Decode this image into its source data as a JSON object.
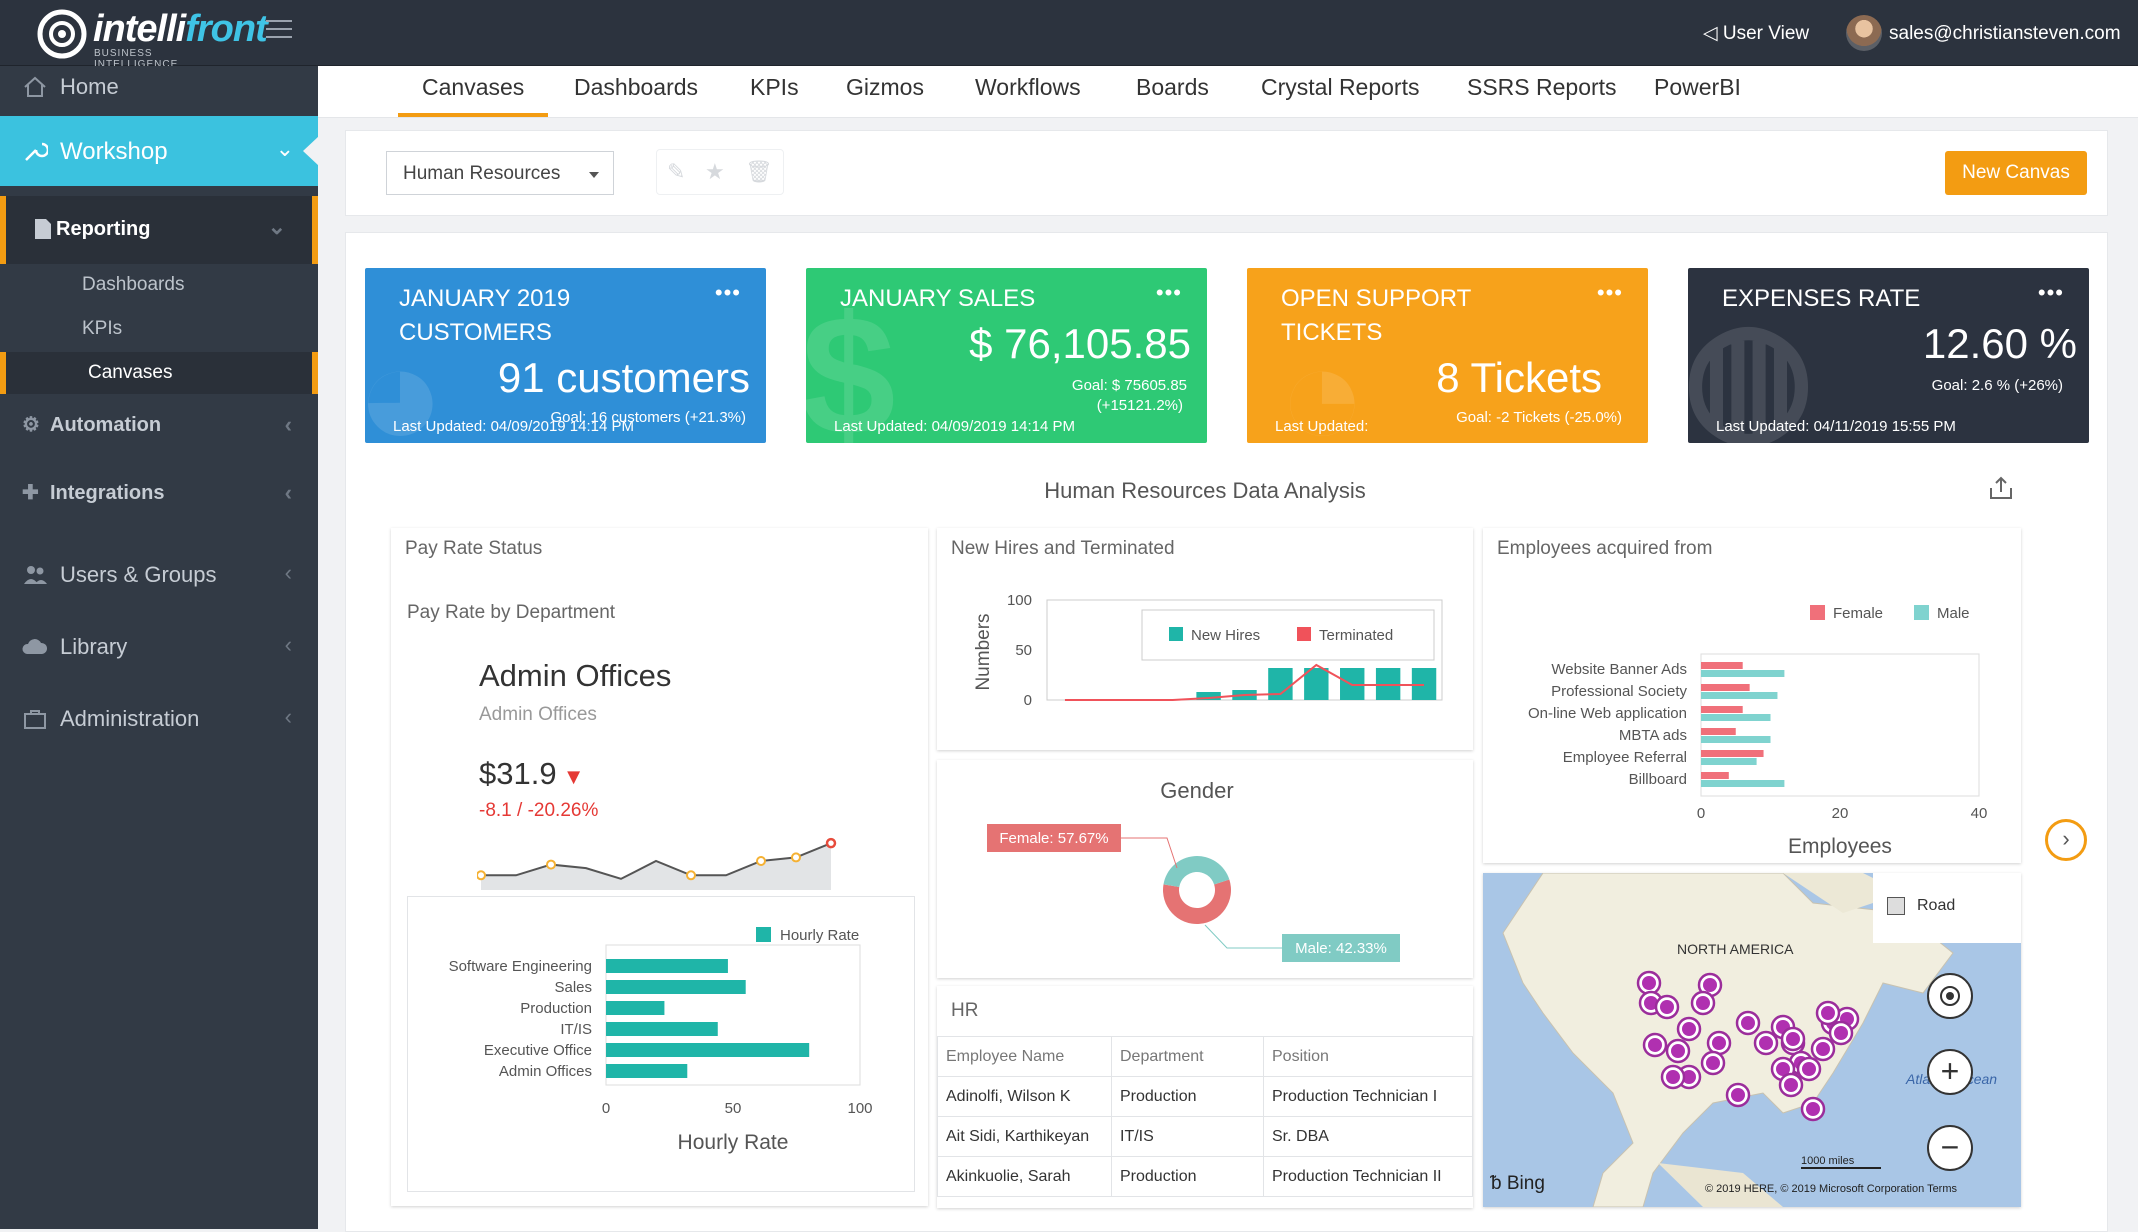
{
  "app": {
    "logo_main": "intelli",
    "logo_accent": "front",
    "logo_sub": "BUSINESS INTELLIGENCE"
  },
  "topbar": {
    "user_view": "User View",
    "user_email": "sales@christiansteven.com"
  },
  "sidebar": {
    "home": "Home",
    "workshop": "Workshop",
    "reporting": "Reporting",
    "reporting_items": [
      "Dashboards",
      "KPIs",
      "Canvases"
    ],
    "automation": "Automation",
    "integrations": "Integrations",
    "users_groups": "Users & Groups",
    "library": "Library",
    "administration": "Administration"
  },
  "tabs": [
    "Canvases",
    "Dashboards",
    "KPIs",
    "Gizmos",
    "Workflows",
    "Boards",
    "Crystal Reports",
    "SSRS Reports",
    "PowerBI"
  ],
  "toolbar": {
    "selected_canvas": "Human Resources",
    "new_canvas": "New Canvas"
  },
  "kpis": [
    {
      "title": "JANUARY 2019 CUSTOMERS",
      "value": "91 customers",
      "goal": "Goal: 16 customers (+21.3%)",
      "updated": "Last Updated: 04/09/2019 14:14 PM",
      "color": "#2f8fd7"
    },
    {
      "title": "JANUARY SALES",
      "value": "$ 76,105.85",
      "goal": "Goal: $ 75605.85",
      "goal2": "(+15121.2%)",
      "updated": "Last Updated: 04/09/2019 14:14 PM",
      "color": "#2ec975"
    },
    {
      "title": "OPEN SUPPORT TICKETS",
      "value": "8 Tickets",
      "goal": "Goal: -2 Tickets (-25.0%)",
      "updated": "Last Updated:",
      "color": "#f7a21b"
    },
    {
      "title": "EXPENSES RATE",
      "value": "12.60 %",
      "goal": "Goal: 2.6 % (+26%)",
      "updated": "Last Updated: 04/11/2019 15:55 PM",
      "color": "#2c3340"
    }
  ],
  "dashboard": {
    "title": "Human Resources Data Analysis"
  },
  "pay_rate": {
    "panel_title": "Pay Rate Status",
    "subtitle": "Pay Rate by Department",
    "dept": "Admin Offices",
    "dept_sub": "Admin Offices",
    "value": "$31.9",
    "delta": "-8.1 / -20.26%"
  },
  "nav": {
    "next": "›"
  },
  "hr_table": {
    "title": "HR",
    "headers": [
      "Employee Name",
      "Department",
      "Position"
    ],
    "rows": [
      [
        "Adinolfi, Wilson K",
        "Production",
        "Production Technician I"
      ],
      [
        "Ait Sidi, Karthikeyan",
        "IT/IS",
        "Sr. DBA"
      ],
      [
        "Akinkuolie, Sarah",
        "Production",
        "Production Technician II"
      ]
    ]
  },
  "map": {
    "region": "NORTH AMERICA",
    "road": "Road",
    "ocean": "Atlantic Ocean",
    "scale": "1000 miles",
    "brand": "Bing",
    "copyright": "© 2019 HERE, © 2019 Microsoft Corporation",
    "terms": "Terms"
  },
  "chart_data": [
    {
      "type": "bar",
      "orientation": "horizontal",
      "title": "",
      "xlabel": "Hourly Rate",
      "ylabel": "",
      "categories": [
        "Software Engineering",
        "Sales",
        "Production",
        "IT/IS",
        "Executive Office",
        "Admin Offices"
      ],
      "series": [
        {
          "name": "Hourly Rate",
          "values": [
            48,
            55,
            23,
            44,
            80,
            32
          ]
        }
      ],
      "xlim": [
        0,
        100
      ],
      "xticks": [
        0,
        50,
        100
      ],
      "color": "#1fb5a8",
      "legend": "top-right"
    },
    {
      "type": "line",
      "title": "",
      "sparkline": true,
      "x": [
        1,
        2,
        3,
        4,
        5,
        6,
        7,
        8,
        9,
        10,
        11
      ],
      "values": [
        31,
        31,
        34,
        33,
        30,
        35,
        31,
        31,
        35,
        36,
        40
      ],
      "color": "#555555",
      "point_color": "#f5b133",
      "last_point_color": "#e74c3c"
    },
    {
      "type": "bar",
      "title": "New Hires and Terminated",
      "ylabel": "Numbers",
      "ylim": [
        0,
        100
      ],
      "yticks": [
        0,
        50,
        100
      ],
      "x": [
        1,
        2,
        3,
        4,
        5,
        6,
        7,
        8,
        9,
        10,
        11
      ],
      "series": [
        {
          "name": "New Hires",
          "values": [
            0,
            0,
            0,
            0,
            8,
            10,
            32,
            32,
            32,
            32,
            32
          ]
        },
        {
          "name": "Terminated",
          "values": [
            0,
            0,
            0,
            0,
            2,
            5,
            6,
            35,
            15,
            15,
            15
          ]
        }
      ],
      "colors": [
        "#1fb5a8",
        "#f0525a"
      ],
      "legend": "top-center"
    },
    {
      "type": "pie",
      "title": "Gender",
      "donut": true,
      "labels": [
        "Female",
        "Male"
      ],
      "values": [
        57.67,
        42.33
      ],
      "data_labels": [
        "Female: 57.67%",
        "Male: 42.33%"
      ],
      "colors": [
        "#e57373",
        "#80cbc4"
      ]
    },
    {
      "type": "bar",
      "orientation": "horizontal",
      "title": "Employees acquired from",
      "xlabel": "Employees",
      "categories": [
        "Website Banner Ads",
        "Professional Society",
        "On-line Web application",
        "MBTA ads",
        "Employee Referral",
        "Billboard"
      ],
      "series": [
        {
          "name": "Female",
          "values": [
            6,
            7,
            6,
            5,
            9,
            4
          ]
        },
        {
          "name": "Male",
          "values": [
            12,
            11,
            10,
            10,
            8,
            12
          ]
        }
      ],
      "xlim": [
        0,
        40
      ],
      "xticks": [
        0,
        20,
        40
      ],
      "colors": [
        "#f0707a",
        "#7fd3cf"
      ],
      "legend": "top-right"
    }
  ]
}
